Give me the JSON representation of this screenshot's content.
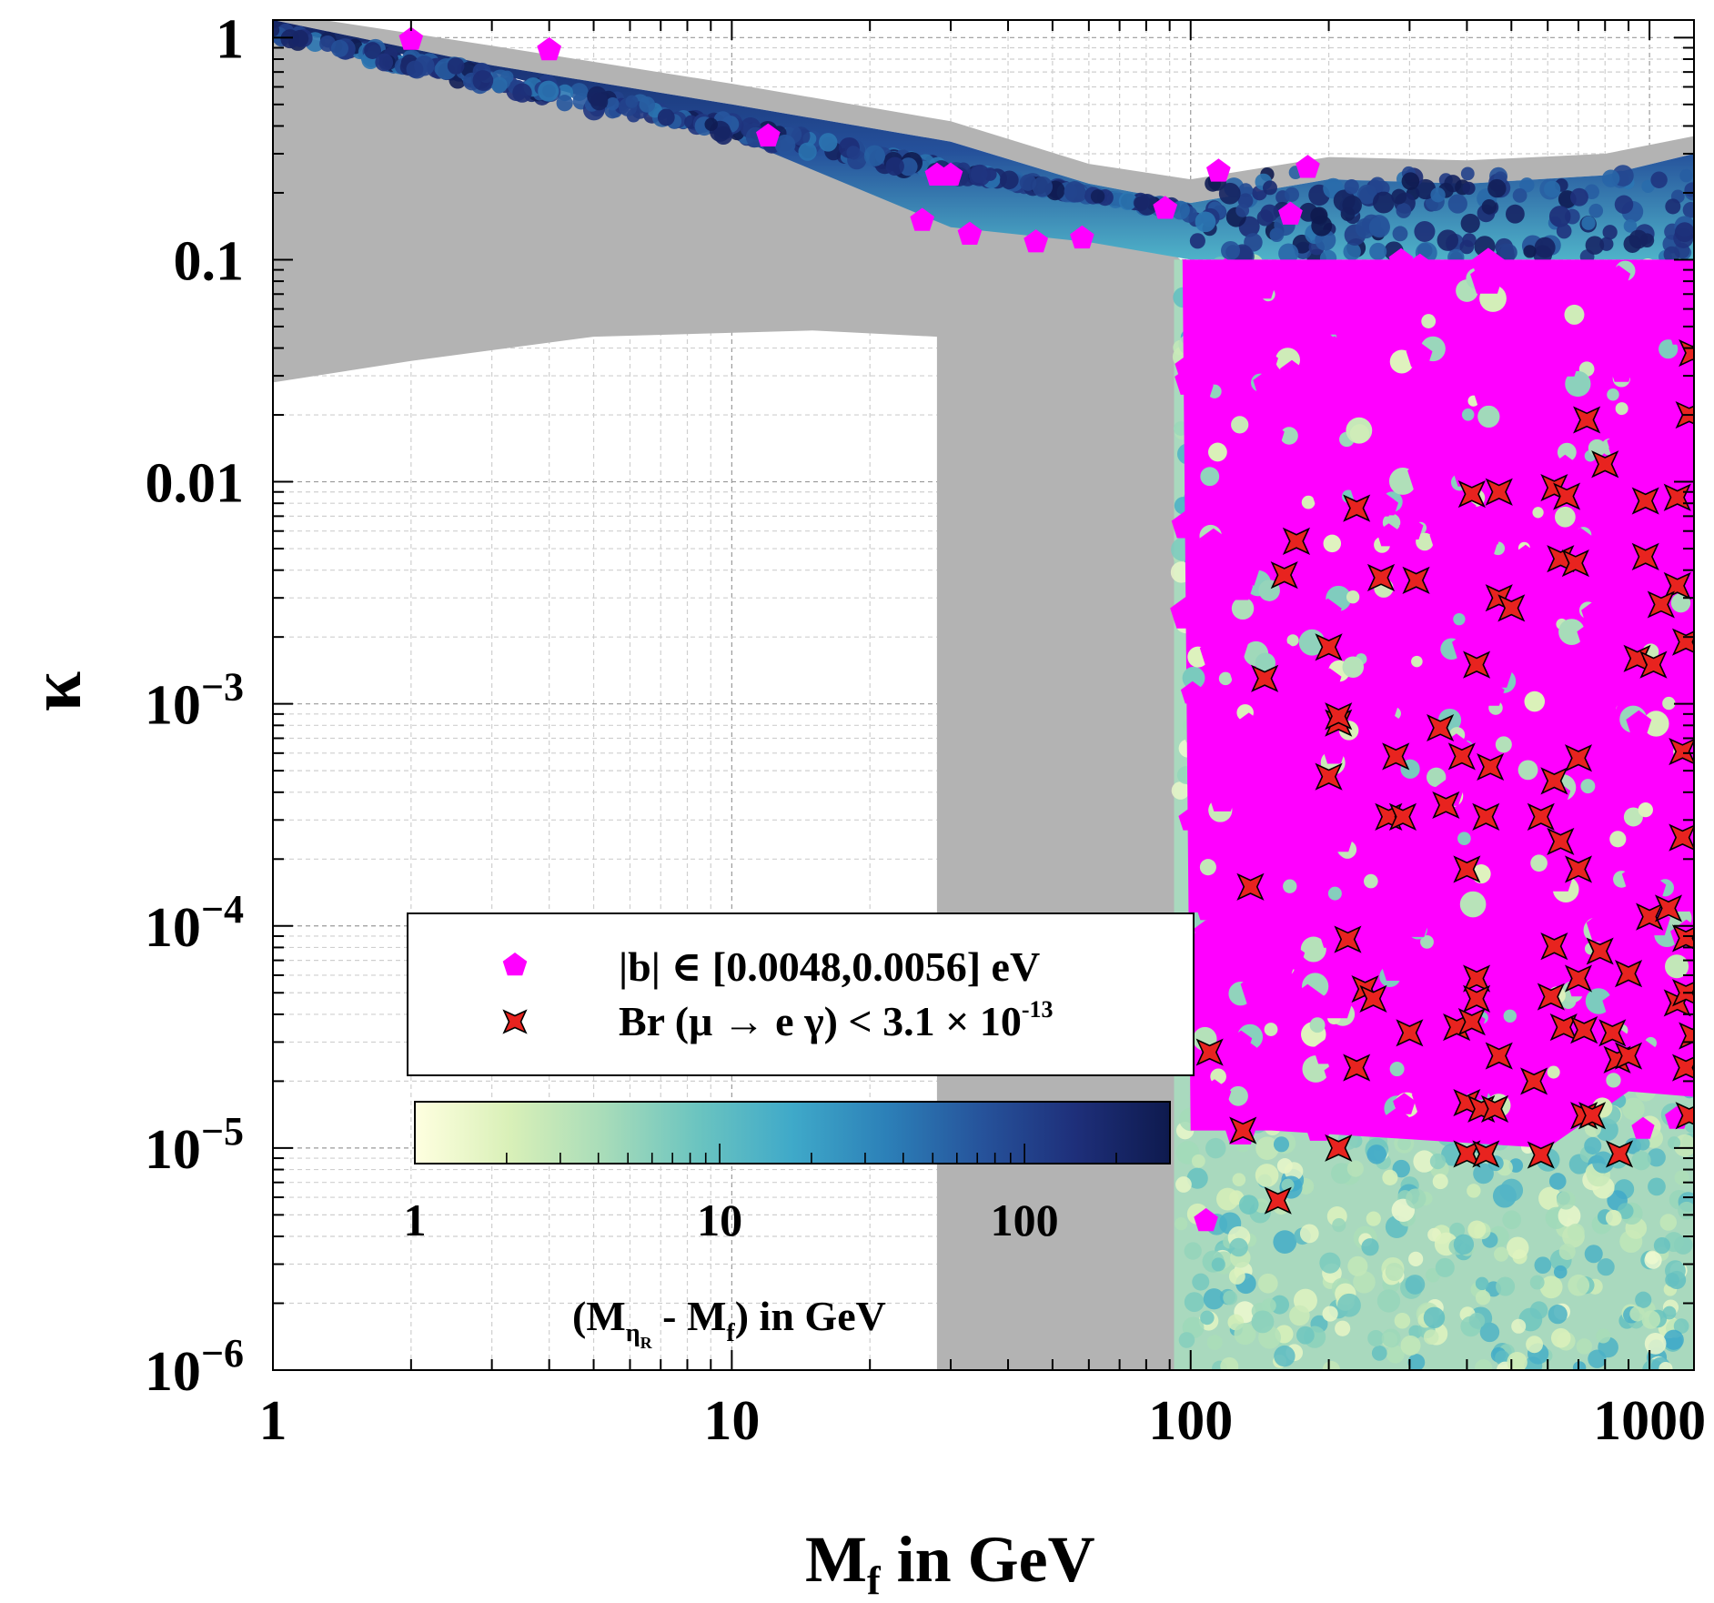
{
  "chart_data": {
    "type": "scatter",
    "xscale": "log",
    "yscale": "log",
    "xlim": [
      1,
      1250
    ],
    "ylim": [
      1e-06,
      1.2
    ],
    "xlabel": {
      "main": "M",
      "sub": "f",
      "rest": " in GeV"
    },
    "ylabel": "κ",
    "x_ticks": [
      {
        "value": 1,
        "label": "1"
      },
      {
        "value": 10,
        "label": "10"
      },
      {
        "value": 100,
        "label": "100"
      },
      {
        "value": 1000,
        "label": "1000"
      }
    ],
    "y_ticks": [
      {
        "value": 1,
        "label": "1",
        "base": "",
        "exp": ""
      },
      {
        "value": 0.1,
        "label": "0.1",
        "base": "",
        "exp": ""
      },
      {
        "value": 0.01,
        "label": "0.01",
        "base": "",
        "exp": ""
      },
      {
        "value": 0.001,
        "label": "",
        "base": "10",
        "exp": "−3"
      },
      {
        "value": 0.0001,
        "label": "",
        "base": "10",
        "exp": "−4"
      },
      {
        "value": 1e-05,
        "label": "",
        "base": "10",
        "exp": "−5"
      },
      {
        "value": 1e-06,
        "label": "",
        "base": "10",
        "exp": "−6"
      }
    ],
    "grid": true,
    "excluded_color": "#b3b3b3",
    "colorbar": {
      "label_main": "(M",
      "label_sub": "η",
      "label_subsub": "R",
      "label_rest": " - M",
      "label_sub2": "f",
      "label_end": ") in GeV",
      "range": [
        1,
        300
      ],
      "scale": "log",
      "ticks": [
        {
          "value": 1,
          "label": "1"
        },
        {
          "value": 10,
          "label": "10"
        },
        {
          "value": 100,
          "label": "100"
        }
      ],
      "colors": [
        "#ffffe0",
        "#d9f0b8",
        "#a8dcb9",
        "#6bc4c0",
        "#3fa9c9",
        "#2c80b8",
        "#26539b",
        "#1e2f7a",
        "#0e1a4e"
      ]
    },
    "legend": {
      "position": "lower-left",
      "entries": [
        {
          "marker": "pentagon",
          "color": "#ff00ff",
          "label": "|b| ∈ [0.0048,0.0056] eV"
        },
        {
          "marker": "star",
          "color": "#e8231f",
          "label_main": "Br (μ → e γ) < 3.1 × 10",
          "label_exp": "-13"
        }
      ]
    },
    "series": [
      {
        "marker": "pentagon",
        "color": "#ff00ff",
        "points": [
          [
            2,
            0.98
          ],
          [
            4,
            0.88
          ],
          [
            12,
            0.36
          ],
          [
            28,
            0.24
          ],
          [
            30,
            0.24
          ],
          [
            26,
            0.15
          ],
          [
            33,
            0.13
          ],
          [
            46,
            0.12
          ],
          [
            58,
            0.125
          ],
          [
            88,
            0.17
          ],
          [
            115,
            0.25
          ],
          [
            180,
            0.26
          ],
          [
            165,
            0.16
          ],
          [
            108,
            4.7e-06
          ],
          [
            100,
            0.03
          ],
          [
            100,
            0.0003
          ]
        ]
      },
      {
        "marker": "star",
        "color": "#e8231f",
        "points": [
          [
            160,
            0.0038
          ],
          [
            170,
            0.0054
          ],
          [
            230,
            0.0076
          ],
          [
            200,
            0.0018
          ],
          [
            260,
            0.0037
          ],
          [
            310,
            0.0036
          ],
          [
            410,
            0.0088
          ],
          [
            470,
            0.009
          ],
          [
            620,
            0.0094
          ],
          [
            660,
            0.0086
          ],
          [
            730,
            0.019
          ],
          [
            800,
            0.012
          ],
          [
            980,
            0.0082
          ],
          [
            1150,
            0.0085
          ],
          [
            1220,
            0.02
          ],
          [
            1240,
            0.038
          ],
          [
            640,
            0.0045
          ],
          [
            690,
            0.0043
          ],
          [
            980,
            0.0046
          ],
          [
            1150,
            0.0034
          ],
          [
            1200,
            0.0019
          ],
          [
            940,
            0.0016
          ],
          [
            1020,
            0.0015
          ],
          [
            470,
            0.003
          ],
          [
            500,
            0.0027
          ],
          [
            420,
            0.0015
          ],
          [
            145,
            0.0013
          ],
          [
            210,
            0.00082
          ],
          [
            210,
            0.00088
          ],
          [
            280,
            0.00058
          ],
          [
            350,
            0.00078
          ],
          [
            390,
            0.00058
          ],
          [
            450,
            0.00052
          ],
          [
            200,
            0.00047
          ],
          [
            270,
            0.00031
          ],
          [
            290,
            0.00031
          ],
          [
            360,
            0.00035
          ],
          [
            440,
            0.00031
          ],
          [
            620,
            0.00045
          ],
          [
            700,
            0.00057
          ],
          [
            580,
            0.00031
          ],
          [
            640,
            0.00024
          ],
          [
            700,
            0.00018
          ],
          [
            400,
            0.00018
          ],
          [
            135,
            0.00015
          ],
          [
            220,
            8.7e-05
          ],
          [
            240,
            5.2e-05
          ],
          [
            250,
            4.7e-05
          ],
          [
            420,
            5.8e-05
          ],
          [
            420,
            4.7e-05
          ],
          [
            700,
            5.8e-05
          ],
          [
            610,
            4.8e-05
          ],
          [
            620,
            8.1e-05
          ],
          [
            780,
            7.7e-05
          ],
          [
            900,
            6.1e-05
          ],
          [
            1000,
            0.00011
          ],
          [
            1100,
            0.00012
          ],
          [
            1200,
            8.8e-05
          ],
          [
            1180,
            0.00025
          ],
          [
            1150,
            4.5e-05
          ],
          [
            1200,
            5e-05
          ],
          [
            110,
            2.7e-05
          ],
          [
            230,
            2.3e-05
          ],
          [
            300,
            3.3e-05
          ],
          [
            380,
            3.5e-05
          ],
          [
            410,
            3.7e-05
          ],
          [
            470,
            2.6e-05
          ],
          [
            560,
            2e-05
          ],
          [
            650,
            3.5e-05
          ],
          [
            720,
            3.4e-05
          ],
          [
            830,
            3.3e-05
          ],
          [
            850,
            2.5e-05
          ],
          [
            900,
            2.6e-05
          ],
          [
            1200,
            2.3e-05
          ],
          [
            1240,
            3.2e-05
          ],
          [
            400,
            1.6e-05
          ],
          [
            430,
            1.5e-05
          ],
          [
            460,
            1.5e-05
          ],
          [
            720,
            1.4e-05
          ],
          [
            750,
            1.4e-05
          ],
          [
            1220,
            1.4e-05
          ],
          [
            130,
            1.2e-05
          ],
          [
            210,
            1e-05
          ],
          [
            400,
            9.4e-06
          ],
          [
            440,
            9.4e-06
          ],
          [
            580,
            9.3e-06
          ],
          [
            860,
            9.4e-06
          ],
          [
            155,
            5.8e-06
          ],
          [
            1180,
            0.00061
          ],
          [
            1060,
            0.0028
          ]
        ]
      }
    ]
  }
}
